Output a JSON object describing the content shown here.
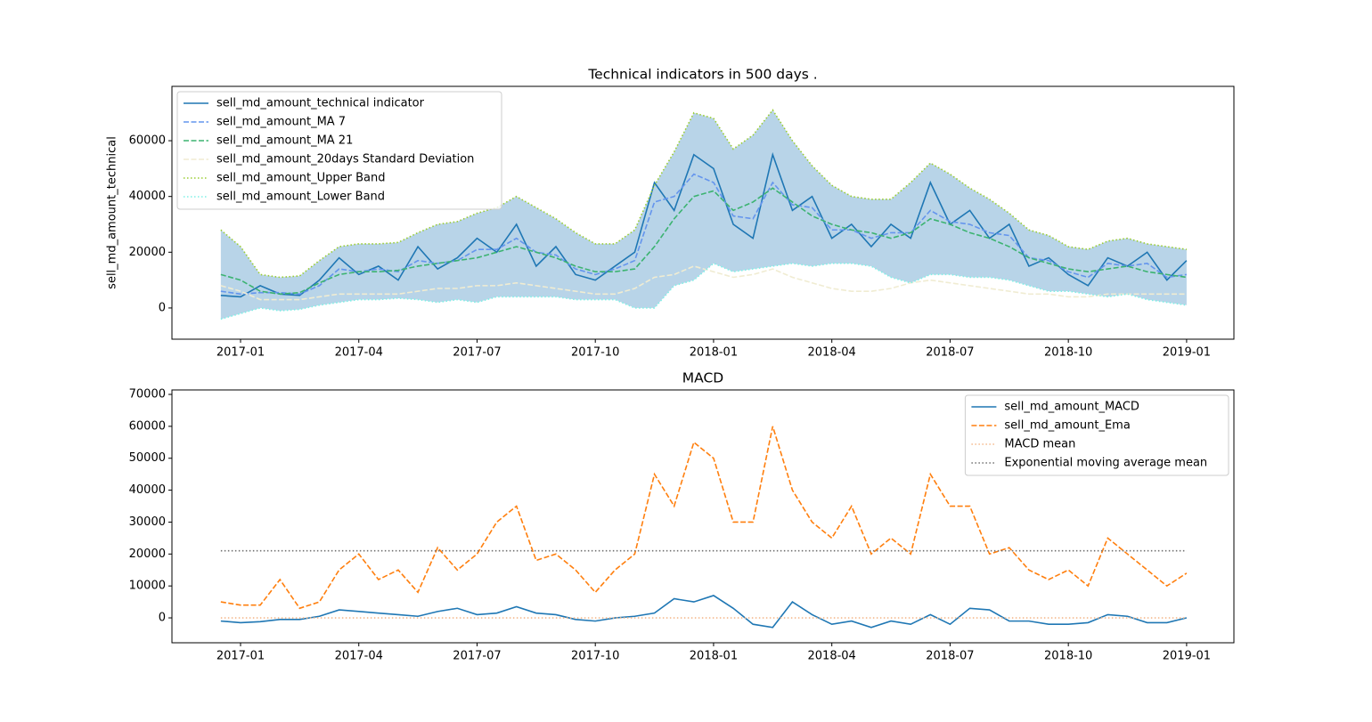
{
  "chart_data": [
    {
      "type": "line",
      "title": "Technical indicators in 500 days .",
      "ylabel": "sell_md_amount_technical",
      "legend": "upper left",
      "x": [
        -0.5,
        0,
        0.5,
        1,
        1.5,
        2,
        2.5,
        3,
        3.5,
        4,
        4.5,
        5,
        5.5,
        6,
        6.5,
        7,
        7.5,
        8,
        8.5,
        9,
        9.5,
        10,
        10.5,
        11,
        11.5,
        12,
        12.5,
        13,
        13.5,
        14,
        14.5,
        15,
        15.5,
        16,
        16.5,
        17,
        17.5,
        18,
        18.5,
        19,
        19.5,
        20,
        20.5,
        21,
        21.5,
        22,
        22.5,
        23,
        23.5,
        24
      ],
      "xlim": [
        -1.74,
        25.2
      ],
      "xticks": [
        {
          "value": 0,
          "label": "2017-01"
        },
        {
          "value": 3,
          "label": "2017-04"
        },
        {
          "value": 6,
          "label": "2017-07"
        },
        {
          "value": 9,
          "label": "2017-10"
        },
        {
          "value": 12,
          "label": "2018-01"
        },
        {
          "value": 15,
          "label": "2018-04"
        },
        {
          "value": 18,
          "label": "2018-07"
        },
        {
          "value": 21,
          "label": "2018-10"
        },
        {
          "value": 24,
          "label": "2019-01"
        }
      ],
      "ylim": [
        -11200,
        79500
      ],
      "yticks": [
        0,
        20000,
        40000,
        60000
      ],
      "series": [
        {
          "name": "sell_md_amount_technical indicator",
          "color": "#1f77b4",
          "style": "solid",
          "values": [
            4500,
            4000,
            8000,
            5000,
            4500,
            10000,
            18000,
            12000,
            15000,
            10000,
            22000,
            14000,
            18000,
            25000,
            20000,
            30000,
            15000,
            22000,
            12000,
            10000,
            15000,
            20000,
            45000,
            35000,
            55000,
            50000,
            30000,
            25000,
            55000,
            35000,
            40000,
            25000,
            30000,
            22000,
            30000,
            25000,
            45000,
            30000,
            35000,
            25000,
            30000,
            15000,
            18000,
            12000,
            8000,
            18000,
            15000,
            20000,
            10000,
            17000
          ]
        },
        {
          "name": "sell_md_amount_MA 7",
          "color": "#6495ed",
          "style": "dashed",
          "values": [
            6000,
            5000,
            5500,
            5500,
            5000,
            8000,
            14000,
            13000,
            14000,
            13000,
            17000,
            16000,
            17000,
            21000,
            21000,
            25000,
            20000,
            19000,
            14000,
            12000,
            14000,
            17000,
            38000,
            40000,
            48000,
            45000,
            33000,
            32000,
            45000,
            37000,
            36000,
            28000,
            28000,
            25000,
            27000,
            27000,
            35000,
            31000,
            30000,
            27000,
            26000,
            18000,
            17000,
            13000,
            11000,
            16000,
            15000,
            16000,
            11000,
            12000
          ]
        },
        {
          "name": "sell_md_amount_MA 21",
          "color": "#3cb371",
          "style": "dashed",
          "values": [
            12000,
            10000,
            6000,
            5000,
            5500,
            9000,
            12000,
            13000,
            13000,
            13500,
            15000,
            16000,
            17000,
            18000,
            20000,
            22000,
            20000,
            18000,
            15000,
            13000,
            13000,
            14000,
            22000,
            32000,
            40000,
            42000,
            35000,
            38000,
            43000,
            38000,
            33000,
            30000,
            28000,
            27000,
            25000,
            27000,
            32000,
            30000,
            27000,
            25000,
            22000,
            18000,
            16000,
            14000,
            13000,
            14000,
            15000,
            13000,
            12000,
            11000
          ]
        },
        {
          "name": "sell_md_amount_20days Standard Deviation",
          "color": "#f0ecd2",
          "style": "dashed",
          "values": [
            8000,
            6000,
            3000,
            3000,
            3000,
            4000,
            5000,
            5000,
            5000,
            5000,
            6000,
            7000,
            7000,
            8000,
            8000,
            9000,
            8000,
            7000,
            6000,
            5000,
            5000,
            7000,
            11000,
            12000,
            15000,
            13000,
            11000,
            12000,
            14000,
            11000,
            9000,
            7000,
            6000,
            6000,
            7000,
            9000,
            10000,
            9000,
            8000,
            7000,
            6000,
            5000,
            5000,
            4000,
            4000,
            5000,
            5000,
            5000,
            5000,
            5000
          ]
        },
        {
          "name": "sell_md_amount_Upper Band",
          "color": "#9acd32",
          "style": "dotted",
          "fill_to": "sell_md_amount_Lower Band",
          "fill": "#b8d4e8",
          "values": [
            28000,
            22000,
            12000,
            11000,
            11500,
            17000,
            22000,
            23000,
            23000,
            23500,
            27000,
            30000,
            31000,
            34000,
            36000,
            40000,
            36000,
            32000,
            27000,
            23000,
            23000,
            28000,
            44000,
            56000,
            70000,
            68000,
            57000,
            62000,
            71000,
            60000,
            51000,
            44000,
            40000,
            39000,
            39000,
            45000,
            52000,
            48000,
            43000,
            39000,
            34000,
            28000,
            26000,
            22000,
            21000,
            24000,
            25000,
            23000,
            22000,
            21000
          ]
        },
        {
          "name": "sell_md_amount_Lower Band",
          "color": "#7ff0e6",
          "style": "dotted",
          "values": [
            -4000,
            -2000,
            0,
            -1000,
            -500,
            1000,
            2000,
            3000,
            3000,
            3500,
            3000,
            2000,
            3000,
            2000,
            4000,
            4000,
            4000,
            4000,
            3000,
            3000,
            3000,
            0,
            0,
            8000,
            10000,
            16000,
            13000,
            14000,
            15000,
            16000,
            15000,
            16000,
            16000,
            15000,
            11000,
            9000,
            12000,
            12000,
            11000,
            11000,
            10000,
            8000,
            6000,
            6000,
            5000,
            4000,
            5000,
            3000,
            2000,
            1000
          ]
        }
      ]
    },
    {
      "type": "line",
      "title": "MACD",
      "legend": "upper right",
      "x": [
        -0.5,
        0,
        0.5,
        1,
        1.5,
        2,
        2.5,
        3,
        3.5,
        4,
        4.5,
        5,
        5.5,
        6,
        6.5,
        7,
        7.5,
        8,
        8.5,
        9,
        9.5,
        10,
        10.5,
        11,
        11.5,
        12,
        12.5,
        13,
        13.5,
        14,
        14.5,
        15,
        15.5,
        16,
        16.5,
        17,
        17.5,
        18,
        18.5,
        19,
        19.5,
        20,
        20.5,
        21,
        21.5,
        22,
        22.5,
        23,
        23.5,
        24
      ],
      "xlim": [
        -1.74,
        25.2
      ],
      "xticks": [
        {
          "value": 0,
          "label": "2017-01"
        },
        {
          "value": 3,
          "label": "2017-04"
        },
        {
          "value": 6,
          "label": "2017-07"
        },
        {
          "value": 9,
          "label": "2017-10"
        },
        {
          "value": 12,
          "label": "2018-01"
        },
        {
          "value": 15,
          "label": "2018-04"
        },
        {
          "value": 18,
          "label": "2018-07"
        },
        {
          "value": 21,
          "label": "2018-10"
        },
        {
          "value": 24,
          "label": "2019-01"
        }
      ],
      "ylim": [
        -7800,
        71400
      ],
      "yticks": [
        0,
        10000,
        20000,
        30000,
        40000,
        50000,
        60000,
        70000
      ],
      "series": [
        {
          "name": "sell_md_amount_MACD",
          "color": "#1f77b4",
          "style": "solid",
          "values": [
            -1000,
            -1500,
            -1200,
            -500,
            -500,
            500,
            2500,
            2000,
            1500,
            1000,
            500,
            2000,
            3000,
            1000,
            1500,
            3500,
            1500,
            1000,
            -500,
            -1000,
            0,
            500,
            1500,
            6000,
            5000,
            7000,
            3000,
            -2000,
            -3000,
            5000,
            1000,
            -2000,
            -1000,
            -3000,
            -1000,
            -2000,
            1000,
            -2000,
            3000,
            2500,
            -1000,
            -1000,
            -2000,
            -2000,
            -1500,
            1000,
            500,
            -1500,
            -1500,
            0
          ]
        },
        {
          "name": "sell_md_amount_Ema",
          "color": "#ff7f0e",
          "style": "dashed",
          "values": [
            5000,
            4000,
            4000,
            12000,
            3000,
            5000,
            15000,
            20000,
            12000,
            15000,
            8000,
            22000,
            15000,
            20000,
            30000,
            35000,
            18000,
            20000,
            15000,
            8000,
            15000,
            20000,
            45000,
            35000,
            55000,
            50000,
            30000,
            30000,
            60000,
            40000,
            30000,
            25000,
            35000,
            20000,
            25000,
            20000,
            45000,
            35000,
            35000,
            20000,
            22000,
            15000,
            12000,
            15000,
            10000,
            25000,
            20000,
            15000,
            10000,
            14000
          ]
        },
        {
          "name": "MACD mean",
          "color": "#f4b88c",
          "style": "dotted",
          "value": 0
        },
        {
          "name": "Exponential moving average mean",
          "color": "#707070",
          "style": "dotted",
          "value": 21000
        }
      ]
    }
  ]
}
